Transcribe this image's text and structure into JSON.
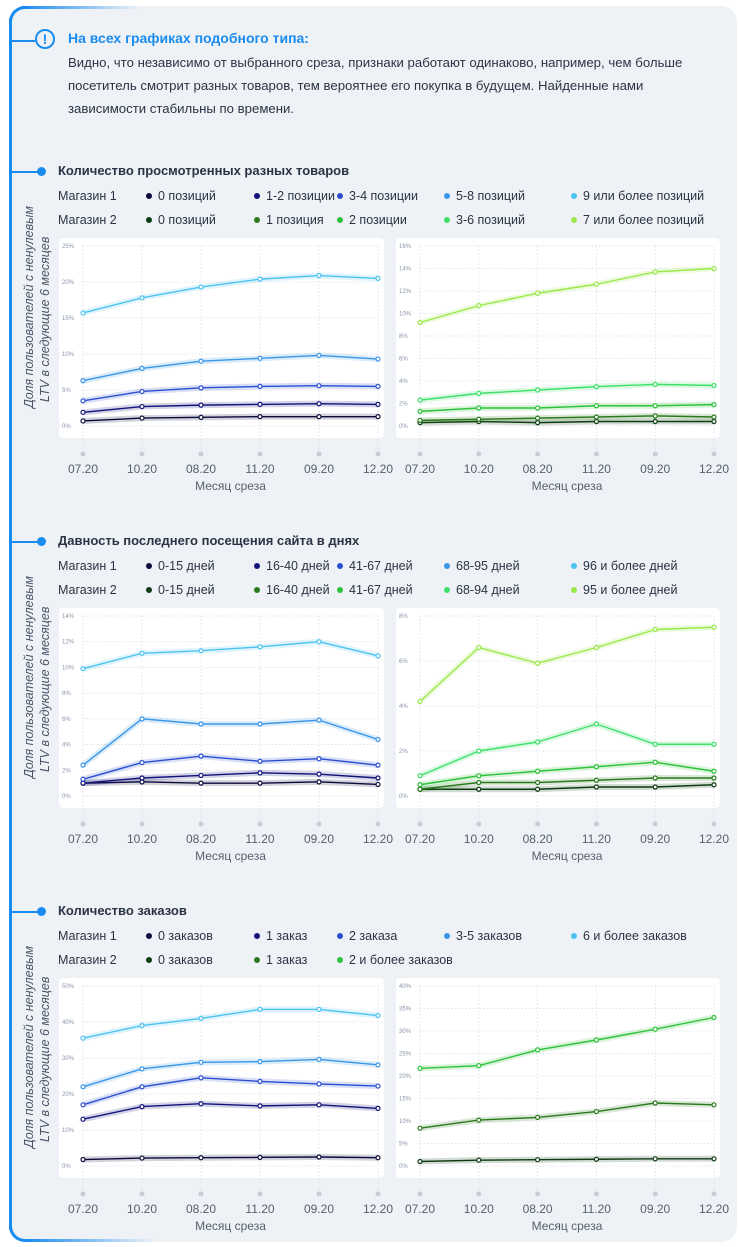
{
  "note": {
    "icon": "exclamation-circle-icon",
    "title": "На всех графиках подобного типа:",
    "text": "Видно, что независимо от выбранного среза, признаки работают одинаково, например, чем больше посетитель смотрит разных товаров, тем вероятнее его покупка в будущем. Найденные нами зависимости стабильны по времени."
  },
  "y_axis_label_line1": "Доля пользователей с ненулевым",
  "y_axis_label_line2": "LTV в следующие 6 месяцев",
  "sections": [
    {
      "title": "Количество просмотренных разных товаров",
      "legend": [
        {
          "store": "Магазин 1",
          "items": [
            {
              "label": "0 позиций",
              "color": "#0b0b3b"
            },
            {
              "label": "1-2 позиции",
              "color": "#12127a"
            },
            {
              "label": "3-4 позиции",
              "color": "#2a4fd0"
            },
            {
              "label": "5-8 позиций",
              "color": "#3a96e6"
            },
            {
              "label": "9 или более позиций",
              "color": "#4cc3ef"
            }
          ]
        },
        {
          "store": "Магазин 2",
          "items": [
            {
              "label": "0 позиций",
              "color": "#0d3b12"
            },
            {
              "label": "1 позиция",
              "color": "#2a7a1d"
            },
            {
              "label": "2 позиции",
              "color": "#2ec23a"
            },
            {
              "label": "3-6 позиций",
              "color": "#3fe06a"
            },
            {
              "label": "7 или более позиций",
              "color": "#9be84a"
            }
          ]
        }
      ]
    },
    {
      "title": "Давность последнего посещения сайта в днях",
      "legend": [
        {
          "store": "Магазин 1",
          "items": [
            {
              "label": "0-15 дней",
              "color": "#0b0b3b"
            },
            {
              "label": "16-40 дней",
              "color": "#12127a"
            },
            {
              "label": "41-67 дней",
              "color": "#2a4fd0"
            },
            {
              "label": "68-95 дней",
              "color": "#3a96e6"
            },
            {
              "label": "96 и более дней",
              "color": "#4cc3ef"
            }
          ]
        },
        {
          "store": "Магазин 2",
          "items": [
            {
              "label": "0-15 дней",
              "color": "#0d3b12"
            },
            {
              "label": "16-40 дней",
              "color": "#2a7a1d"
            },
            {
              "label": "41-67 дней",
              "color": "#2ec23a"
            },
            {
              "label": "68-94 дней",
              "color": "#3fe06a"
            },
            {
              "label": "95 и более дней",
              "color": "#9be84a"
            }
          ]
        }
      ]
    },
    {
      "title": "Количество заказов",
      "legend": [
        {
          "store": "Магазин 1",
          "items": [
            {
              "label": "0 заказов",
              "color": "#0b0b3b"
            },
            {
              "label": "1 заказ",
              "color": "#12127a"
            },
            {
              "label": "2 заказа",
              "color": "#2a4fd0"
            },
            {
              "label": "3-5 заказов",
              "color": "#3a96e6"
            },
            {
              "label": "6 и более заказов",
              "color": "#4cc3ef"
            }
          ]
        },
        {
          "store": "Магазин 2",
          "items": [
            {
              "label": "0 заказов",
              "color": "#0d3b12"
            },
            {
              "label": "1 заказ",
              "color": "#2a7a1d"
            },
            {
              "label": "2 и более заказов",
              "color": "#2ec23a"
            }
          ]
        }
      ]
    }
  ],
  "chart_data": [
    {
      "type": "line",
      "title": "Количество просмотренных разных товаров — Магазин 1",
      "xlabel": "Месяц среза",
      "ylabel": "Доля пользователей с ненулевым LTV в следующие 6 месяцев",
      "x": [
        "07.20",
        "10.20",
        "08.20",
        "11.20",
        "09.20",
        "12.20"
      ],
      "yticks": [
        "0%",
        "5%",
        "10%",
        "15%",
        "20%",
        "25%"
      ],
      "ylim": [
        0,
        25
      ],
      "grid": true,
      "series": [
        {
          "name": "0 позиций",
          "color": "#0b0b3b",
          "values": [
            0.7,
            1.1,
            1.2,
            1.3,
            1.3,
            1.3
          ]
        },
        {
          "name": "1-2 позиции",
          "color": "#12127a",
          "values": [
            1.9,
            2.7,
            2.9,
            3.0,
            3.1,
            3.0
          ]
        },
        {
          "name": "3-4 позиции",
          "color": "#2a4fd0",
          "values": [
            3.5,
            4.8,
            5.3,
            5.5,
            5.6,
            5.5
          ]
        },
        {
          "name": "5-8 позиций",
          "color": "#3a96e6",
          "values": [
            6.3,
            8.0,
            9.0,
            9.4,
            9.8,
            9.3
          ]
        },
        {
          "name": "9 или более позиций",
          "color": "#4cc3ef",
          "values": [
            15.7,
            17.8,
            19.3,
            20.4,
            20.9,
            20.5
          ]
        }
      ]
    },
    {
      "type": "line",
      "title": "Количество просмотренных разных товаров — Магазин 2",
      "xlabel": "Месяц среза",
      "ylabel": "",
      "x": [
        "07.20",
        "10.20",
        "08.20",
        "11.20",
        "09.20",
        "12.20"
      ],
      "yticks": [
        "0%",
        "2%",
        "4%",
        "6%",
        "8%",
        "10%",
        "12%",
        "14%",
        "16%"
      ],
      "ylim": [
        0,
        16
      ],
      "grid": true,
      "series": [
        {
          "name": "0 позиций",
          "color": "#0d3b12",
          "values": [
            0.3,
            0.4,
            0.3,
            0.4,
            0.4,
            0.4
          ]
        },
        {
          "name": "1 позиция",
          "color": "#2a7a1d",
          "values": [
            0.5,
            0.6,
            0.7,
            0.8,
            0.9,
            0.8
          ]
        },
        {
          "name": "2 позиции",
          "color": "#2ec23a",
          "values": [
            1.3,
            1.6,
            1.6,
            1.8,
            1.8,
            1.9
          ]
        },
        {
          "name": "3-6 позиций",
          "color": "#3fe06a",
          "values": [
            2.3,
            2.9,
            3.2,
            3.5,
            3.7,
            3.6
          ]
        },
        {
          "name": "7 или более позиций",
          "color": "#9be84a",
          "values": [
            9.2,
            10.7,
            11.8,
            12.6,
            13.7,
            14.0
          ]
        }
      ]
    },
    {
      "type": "line",
      "title": "Давность последнего посещения сайта в днях — Магазин 1",
      "xlabel": "Месяц среза",
      "ylabel": "Доля пользователей с ненулевым LTV в следующие 6 месяцев",
      "x": [
        "07.20",
        "10.20",
        "08.20",
        "11.20",
        "09.20",
        "12.20"
      ],
      "yticks": [
        "0%",
        "2%",
        "4%",
        "6%",
        "8%",
        "10%",
        "12%",
        "14%"
      ],
      "ylim": [
        0,
        14
      ],
      "grid": true,
      "series": [
        {
          "name": "0-15 дней",
          "color": "#0b0b3b",
          "values": [
            1.0,
            1.1,
            1.0,
            1.0,
            1.1,
            0.9
          ]
        },
        {
          "name": "16-40 дней",
          "color": "#12127a",
          "values": [
            1.0,
            1.4,
            1.6,
            1.8,
            1.7,
            1.4
          ]
        },
        {
          "name": "41-67 дней",
          "color": "#2a4fd0",
          "values": [
            1.3,
            2.6,
            3.1,
            2.7,
            2.9,
            2.4
          ]
        },
        {
          "name": "68-95 дней",
          "color": "#3a96e6",
          "values": [
            2.4,
            6.0,
            5.6,
            5.6,
            5.9,
            4.4
          ]
        },
        {
          "name": "96 и более дней",
          "color": "#4cc3ef",
          "values": [
            9.9,
            11.1,
            11.3,
            11.6,
            12.0,
            10.9
          ]
        }
      ]
    },
    {
      "type": "line",
      "title": "Давность последнего посещения сайта в днях — Магазин 2",
      "xlabel": "Месяц среза",
      "ylabel": "",
      "x": [
        "07.20",
        "10.20",
        "08.20",
        "11.20",
        "09.20",
        "12.20"
      ],
      "yticks": [
        "0%",
        "2%",
        "4%",
        "6%",
        "8%"
      ],
      "ylim": [
        0,
        8
      ],
      "grid": true,
      "series": [
        {
          "name": "0-15 дней",
          "color": "#0d3b12",
          "values": [
            0.3,
            0.3,
            0.3,
            0.4,
            0.4,
            0.5
          ]
        },
        {
          "name": "16-40 дней",
          "color": "#2a7a1d",
          "values": [
            0.3,
            0.6,
            0.6,
            0.7,
            0.8,
            0.8
          ]
        },
        {
          "name": "41-67 дней",
          "color": "#2ec23a",
          "values": [
            0.5,
            0.9,
            1.1,
            1.3,
            1.5,
            1.1
          ]
        },
        {
          "name": "68-94 дней",
          "color": "#3fe06a",
          "values": [
            0.9,
            2.0,
            2.4,
            3.2,
            2.3,
            2.3
          ]
        },
        {
          "name": "95 и более дней",
          "color": "#9be84a",
          "values": [
            4.2,
            6.6,
            5.9,
            6.6,
            7.4,
            7.5
          ]
        }
      ]
    },
    {
      "type": "line",
      "title": "Количество заказов — Магазин 1",
      "xlabel": "Месяц среза",
      "ylabel": "Доля пользователей с ненулевым LTV в следующие 6 месяцев",
      "x": [
        "07.20",
        "10.20",
        "08.20",
        "11.20",
        "09.20",
        "12.20"
      ],
      "yticks": [
        "0%",
        "10%",
        "20%",
        "30%",
        "40%",
        "50%"
      ],
      "ylim": [
        0,
        50
      ],
      "grid": true,
      "series": [
        {
          "name": "0 заказов",
          "color": "#0b0b3b",
          "values": [
            1.8,
            2.2,
            2.3,
            2.4,
            2.5,
            2.3
          ]
        },
        {
          "name": "1 заказ",
          "color": "#12127a",
          "values": [
            13.0,
            16.5,
            17.3,
            16.7,
            17.0,
            16.0
          ]
        },
        {
          "name": "2 заказа",
          "color": "#2a4fd0",
          "values": [
            17.0,
            22.0,
            24.5,
            23.5,
            22.8,
            22.2
          ]
        },
        {
          "name": "3-5 заказов",
          "color": "#3a96e6",
          "values": [
            22.0,
            27.0,
            28.8,
            29.0,
            29.6,
            28.1
          ]
        },
        {
          "name": "6 и более заказов",
          "color": "#4cc3ef",
          "values": [
            35.5,
            39.0,
            41.0,
            43.5,
            43.5,
            41.8
          ]
        }
      ]
    },
    {
      "type": "line",
      "title": "Количество заказов — Магазин 2",
      "xlabel": "Месяц среза",
      "ylabel": "",
      "x": [
        "07.20",
        "10.20",
        "08.20",
        "11.20",
        "09.20",
        "12.20"
      ],
      "yticks": [
        "0%",
        "5%",
        "10%",
        "15%",
        "20%",
        "25%",
        "30%",
        "35%",
        "40%"
      ],
      "ylim": [
        0,
        40
      ],
      "grid": true,
      "series": [
        {
          "name": "0 заказов",
          "color": "#0d3b12",
          "values": [
            1.0,
            1.3,
            1.4,
            1.5,
            1.6,
            1.6
          ]
        },
        {
          "name": "1 заказ",
          "color": "#2a7a1d",
          "values": [
            8.4,
            10.2,
            10.8,
            12.1,
            14.0,
            13.6
          ]
        },
        {
          "name": "2 и более заказов",
          "color": "#2ec23a",
          "values": [
            21.7,
            22.3,
            25.8,
            28.0,
            30.4,
            33.0
          ]
        }
      ]
    }
  ]
}
